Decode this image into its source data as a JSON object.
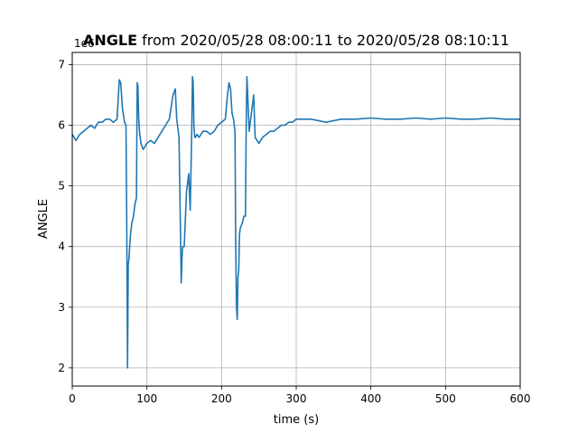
{
  "chart_data": {
    "type": "line",
    "title_bold": "ANGLE",
    "title_rest": " from 2020/05/28 08:00:11 to 2020/05/28 08:10:11",
    "xlabel": "time (s)",
    "ylabel": "ANGLE",
    "offset_label": "1e6",
    "xlim": [
      0,
      600
    ],
    "ylim": [
      1.7,
      7.2
    ],
    "x_ticks": [
      0,
      100,
      200,
      300,
      400,
      500,
      600
    ],
    "y_ticks": [
      2,
      3,
      4,
      5,
      6,
      7
    ],
    "grid": true,
    "line_color": "#1f77b4",
    "series": [
      {
        "x": [
          0,
          5,
          10,
          15,
          20,
          25,
          30,
          35,
          40,
          45,
          50,
          55,
          60,
          63,
          65,
          67,
          70,
          72,
          73,
          74,
          75,
          76,
          78,
          80,
          82,
          84,
          86,
          87,
          88,
          89,
          90,
          92,
          95,
          100,
          105,
          110,
          115,
          120,
          125,
          130,
          135,
          138,
          140,
          142,
          143,
          145,
          146,
          147,
          148,
          150,
          153,
          156,
          158,
          160,
          161,
          162,
          163,
          164,
          165,
          167,
          170,
          175,
          180,
          185,
          190,
          195,
          200,
          205,
          208,
          210,
          212,
          214,
          216,
          218,
          219,
          220,
          221,
          222,
          223,
          224,
          225,
          228,
          230,
          232,
          233,
          234,
          235,
          237,
          240,
          243,
          245,
          250,
          255,
          260,
          265,
          270,
          275,
          280,
          285,
          290,
          295,
          300,
          320,
          340,
          360,
          380,
          400,
          420,
          440,
          460,
          480,
          500,
          520,
          540,
          560,
          580,
          600
        ],
        "y": [
          5.85,
          5.75,
          5.85,
          5.9,
          5.95,
          6.0,
          5.95,
          6.05,
          6.05,
          6.1,
          6.1,
          6.05,
          6.1,
          6.75,
          6.7,
          6.3,
          6.05,
          6.0,
          4.5,
          2.0,
          3.7,
          3.8,
          4.2,
          4.4,
          4.5,
          4.7,
          4.8,
          6.7,
          6.65,
          6.1,
          5.9,
          5.7,
          5.6,
          5.7,
          5.75,
          5.7,
          5.8,
          5.9,
          6.0,
          6.1,
          6.5,
          6.6,
          6.1,
          5.9,
          5.8,
          4.2,
          3.4,
          3.8,
          4.0,
          4.0,
          4.9,
          5.2,
          4.6,
          5.9,
          6.8,
          6.7,
          6.0,
          5.8,
          5.8,
          5.85,
          5.8,
          5.9,
          5.9,
          5.85,
          5.9,
          6.0,
          6.05,
          6.1,
          6.5,
          6.7,
          6.6,
          6.2,
          6.1,
          5.9,
          4.0,
          3.0,
          2.8,
          3.5,
          3.6,
          4.2,
          4.3,
          4.4,
          4.5,
          4.5,
          6.0,
          6.8,
          6.5,
          5.9,
          6.2,
          6.5,
          5.8,
          5.7,
          5.8,
          5.85,
          5.9,
          5.9,
          5.95,
          6.0,
          6.0,
          6.05,
          6.05,
          6.1,
          6.1,
          6.05,
          6.1,
          6.1,
          6.12,
          6.1,
          6.1,
          6.12,
          6.1,
          6.12,
          6.1,
          6.1,
          6.12,
          6.1,
          6.1
        ]
      }
    ]
  }
}
